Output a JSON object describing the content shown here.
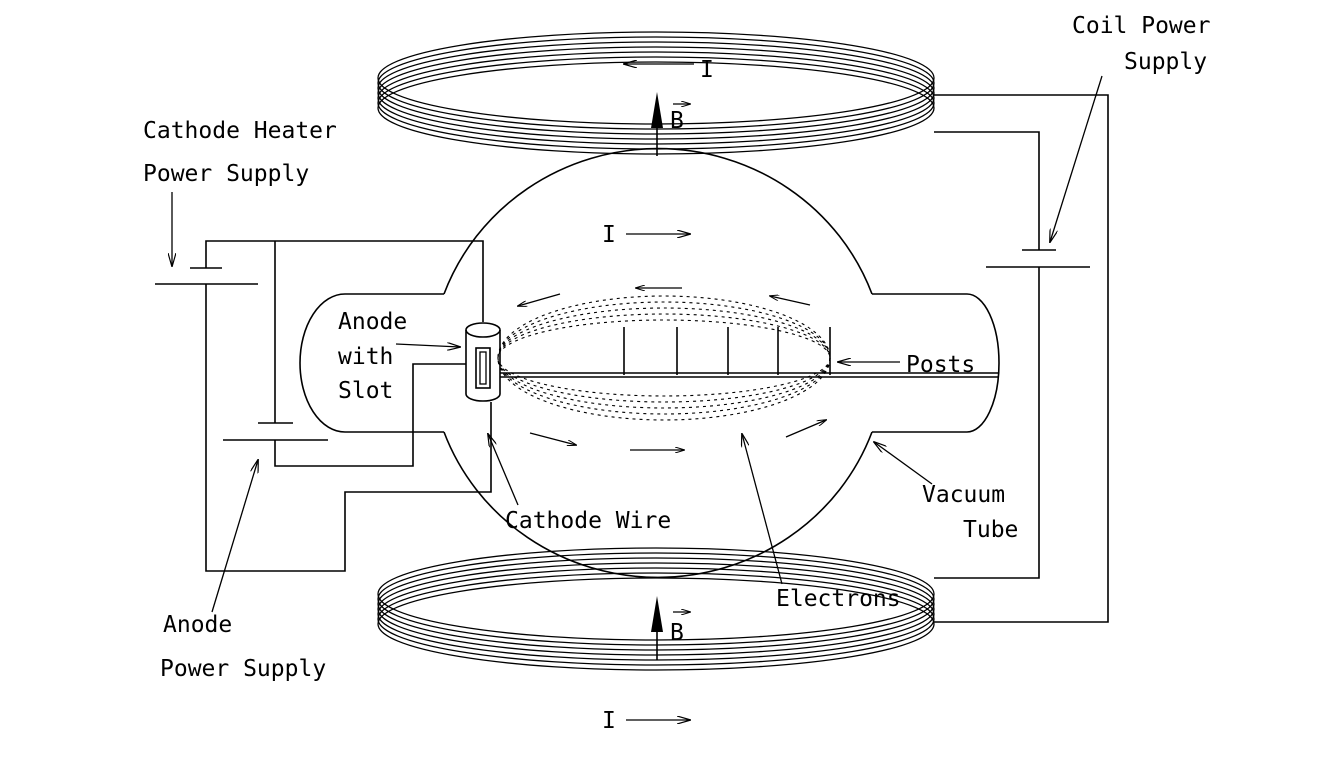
{
  "labels": {
    "coil_power_1": "Coil Power",
    "coil_power_2": "Supply",
    "heater_1": "Cathode Heater",
    "heater_2": "Power Supply",
    "anode_1": "Anode",
    "anode_2": "with",
    "anode_3": "Slot",
    "posts": "Posts",
    "vacuum_1": "Vacuum",
    "vacuum_2": "Tube",
    "cathode_wire": "Cathode Wire",
    "electrons": "Electrons",
    "anode_ps_1": "Anode",
    "anode_ps_2": "Power Supply",
    "current": "I",
    "field": "B"
  },
  "colors": {
    "ink": "#000000",
    "background": "#ffffff"
  }
}
